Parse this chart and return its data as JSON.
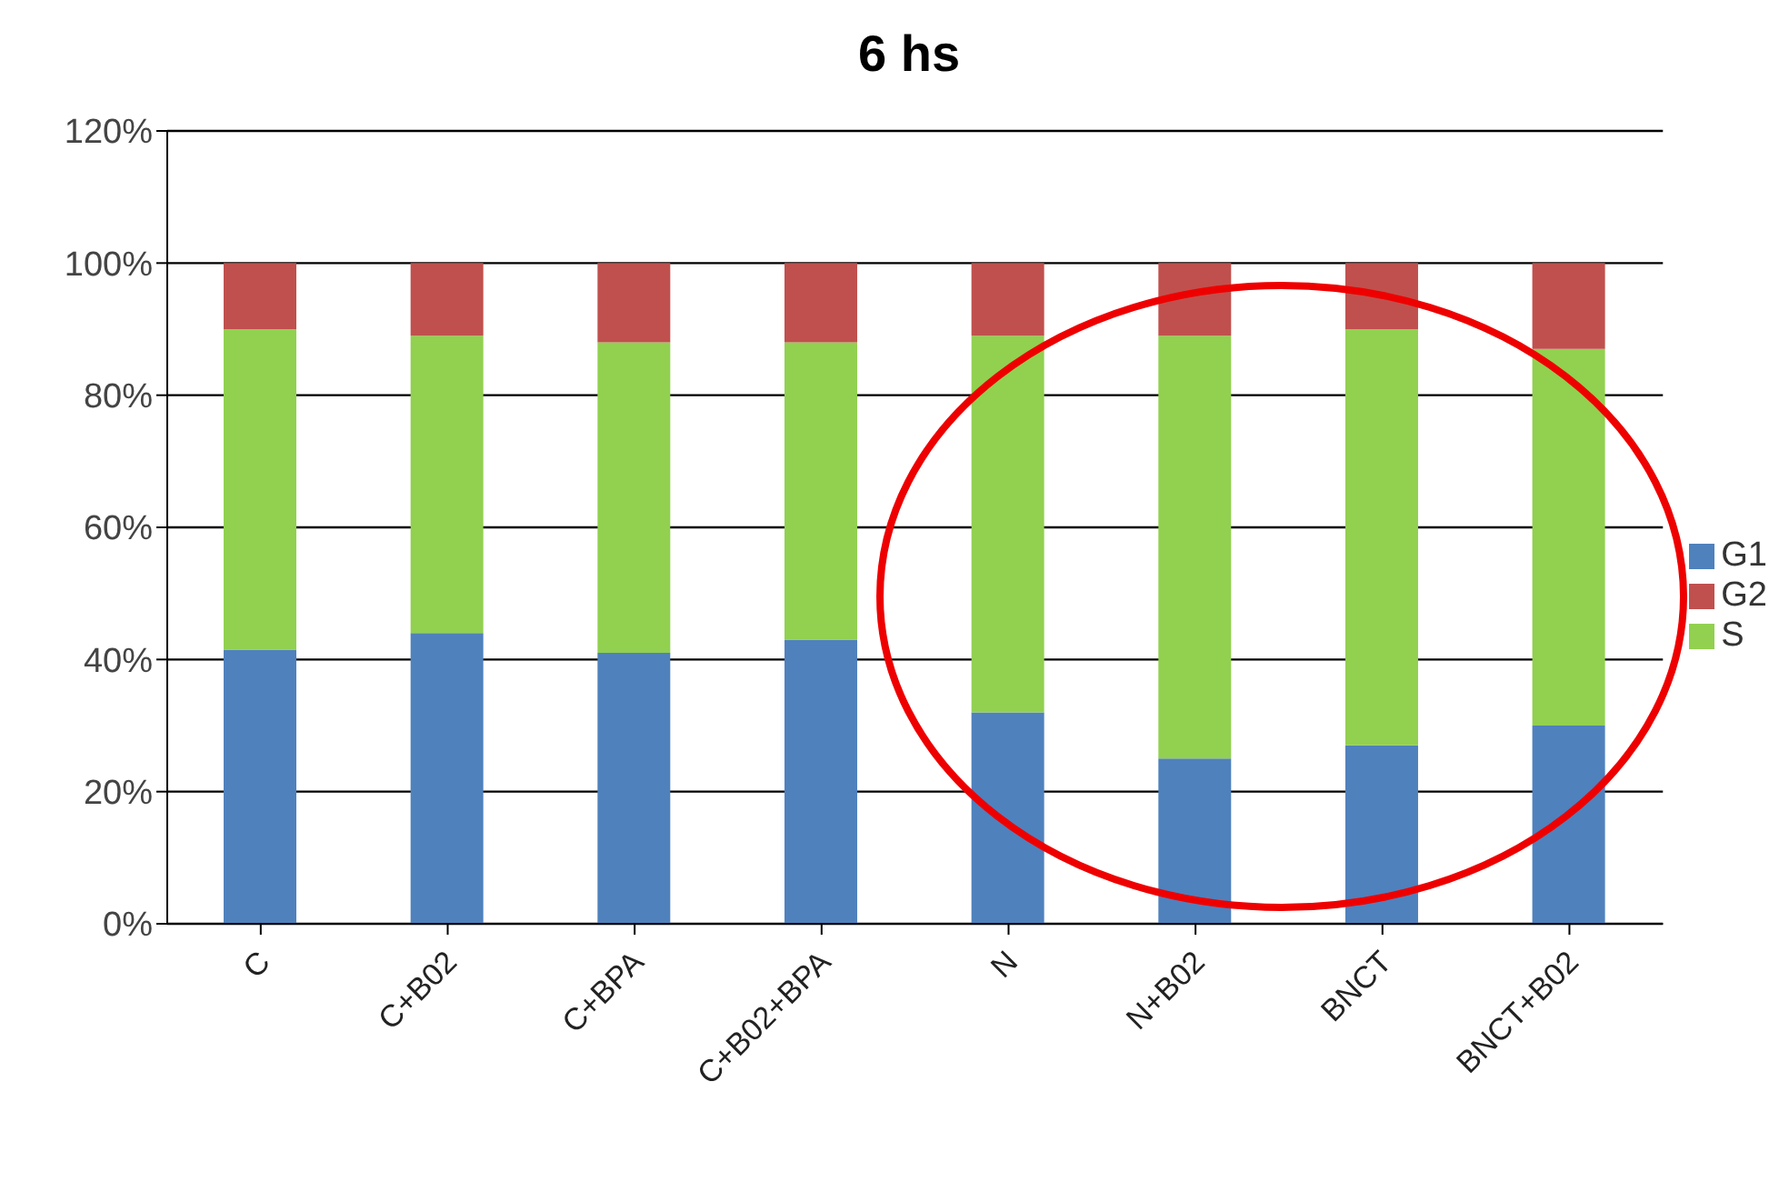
{
  "chart_data": {
    "type": "bar",
    "title": "6 hs",
    "stacked": true,
    "categories": [
      "C",
      "C+B02",
      "C+BPA",
      "C+B02+BPA",
      "N",
      "N+B02",
      "BNCT",
      "BNCT+B02"
    ],
    "series": [
      {
        "name": "G1",
        "color": "#4f81bd",
        "values": [
          41.5,
          44,
          41,
          43,
          32,
          25,
          27,
          30
        ]
      },
      {
        "name": "S",
        "color": "#92d050",
        "values": [
          48.5,
          45,
          47,
          45,
          57,
          64,
          63,
          57
        ]
      },
      {
        "name": "G2",
        "color": "#c0504d",
        "values": [
          10,
          11,
          12,
          12,
          11,
          11,
          10,
          13
        ]
      }
    ],
    "ylim": [
      0,
      120
    ],
    "yticks": [
      {
        "value": 0,
        "label": "0%"
      },
      {
        "value": 20,
        "label": "20%"
      },
      {
        "value": 40,
        "label": "40%"
      },
      {
        "value": 60,
        "label": "60%"
      },
      {
        "value": 80,
        "label": "80%"
      },
      {
        "value": 100,
        "label": "100%"
      },
      {
        "value": 120,
        "label": "120%"
      }
    ],
    "grid": "y",
    "legend": "right"
  }
}
